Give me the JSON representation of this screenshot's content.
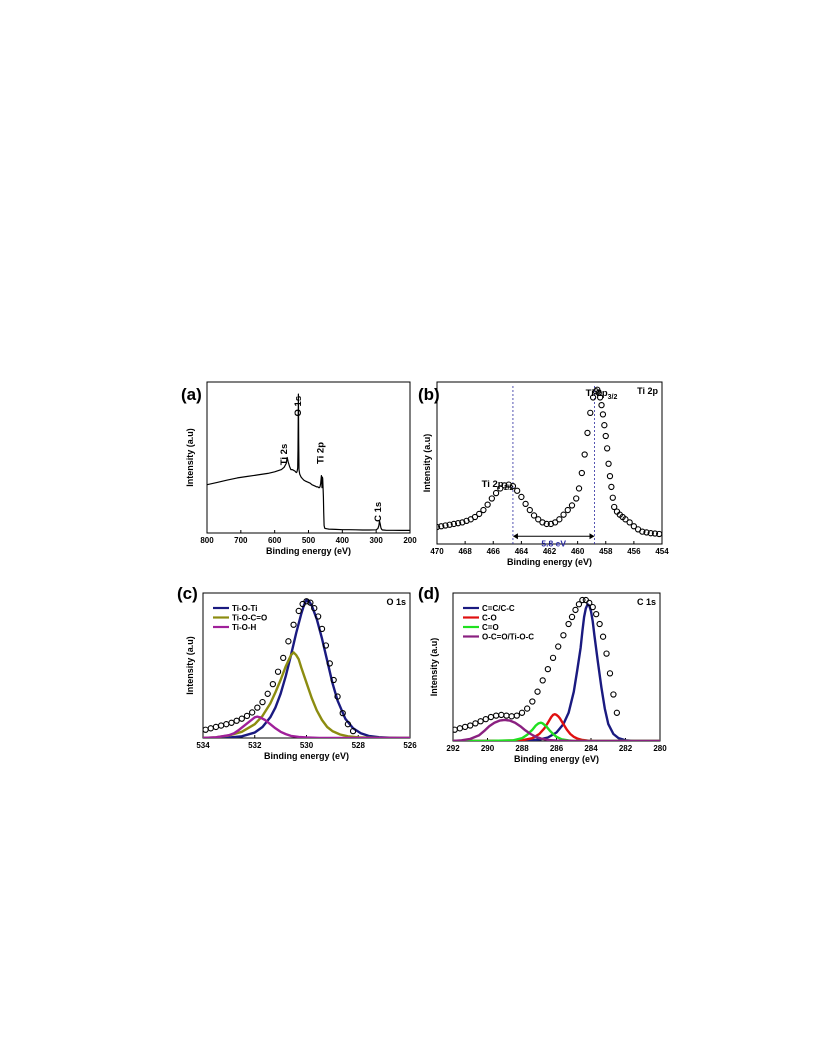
{
  "chart_data": [
    {
      "id": "a",
      "type": "line",
      "panel_label": "(a)",
      "corner_title": "",
      "xlabel": "Binding energy (eV)",
      "ylabel": "Intensity (a.u)",
      "xlim": [
        800,
        200
      ],
      "xticks": [
        800,
        700,
        600,
        500,
        400,
        300,
        200
      ],
      "ylim": [
        0,
        100
      ],
      "legend": [],
      "annotations": [
        {
          "text": "Ti 2s",
          "x": 563,
          "y": 52,
          "rotate": -90
        },
        {
          "text": "O 1s",
          "x": 522,
          "y": 84,
          "rotate": -90
        },
        {
          "text": "Ti 2p",
          "x": 455,
          "y": 53,
          "rotate": -90
        },
        {
          "text": "C 1s",
          "x": 285,
          "y": 14,
          "rotate": -90
        }
      ],
      "series": [
        {
          "color": "#000000",
          "style": "line",
          "width": 1.2,
          "x": [
            800,
            770,
            740,
            710,
            680,
            650,
            620,
            600,
            580,
            572,
            566,
            563,
            560,
            556,
            552,
            548,
            544,
            540,
            536,
            534,
            532,
            531,
            530,
            529,
            528,
            526,
            522,
            518,
            514,
            510,
            505,
            500,
            495,
            490,
            485,
            480,
            476,
            472,
            470,
            468,
            466,
            464,
            462,
            460,
            459,
            458,
            457,
            456,
            455,
            454,
            452,
            450,
            445,
            440,
            420,
            400,
            380,
            360,
            340,
            320,
            300,
            295,
            292,
            290,
            288,
            286,
            284,
            282,
            280,
            275,
            270,
            250,
            230,
            210,
            200
          ],
          "y": [
            32,
            33.5,
            35,
            36.5,
            37.5,
            38.5,
            39.5,
            40.5,
            42,
            43.5,
            46,
            50,
            47,
            44,
            42,
            42,
            41.5,
            41,
            40,
            40.5,
            43,
            55,
            92,
            60,
            42,
            39,
            37,
            36,
            35,
            34.5,
            34,
            33.5,
            33,
            32,
            31.5,
            31,
            30.5,
            30.5,
            30,
            30,
            30.5,
            33,
            38,
            30,
            37,
            36,
            31,
            24,
            14,
            5,
            3.2,
            3,
            2.8,
            2.6,
            2.4,
            2.2,
            2.2,
            2.1,
            2,
            2,
            2.1,
            3,
            5,
            8,
            6,
            3.5,
            2.5,
            2,
            2,
            1.9,
            1.8,
            1.8,
            1.7,
            1.7,
            1.7
          ]
        }
      ]
    },
    {
      "id": "b",
      "type": "scatter",
      "panel_label": "(b)",
      "corner_title": "Ti 2p",
      "xlabel": "Binding energy (eV)",
      "ylabel": "Intensity (a.u)",
      "xlim": [
        470,
        454
      ],
      "xticks": [
        470,
        468,
        466,
        464,
        462,
        460,
        458,
        456,
        454
      ],
      "ylim": [
        0,
        105
      ],
      "legend": [],
      "annotations": [
        {
          "text": "Ti 2p",
          "sub": "3/2",
          "x": 458.3,
          "y": 96,
          "rotate": 0
        },
        {
          "text": "Ti 2p",
          "sub": "1/2",
          "x": 465.7,
          "y": 37,
          "rotate": 0
        }
      ],
      "guide_lines": [
        464.6,
        458.8
      ],
      "span_arrow": {
        "x1": 464.6,
        "x2": 458.8,
        "y": 5,
        "text": "5.8 eV"
      },
      "series": [
        {
          "color": "#000000",
          "style": "markers",
          "marker": "open-circle",
          "x": [
            470,
            469.7,
            469.4,
            469.1,
            468.8,
            468.5,
            468.2,
            467.9,
            467.6,
            467.3,
            467,
            466.7,
            466.4,
            466.1,
            465.8,
            465.5,
            465.2,
            464.9,
            464.6,
            464.3,
            464,
            463.7,
            463.4,
            463.1,
            462.8,
            462.5,
            462.2,
            461.9,
            461.6,
            461.3,
            461,
            460.7,
            460.4,
            460.1,
            459.9,
            459.7,
            459.5,
            459.3,
            459.1,
            458.9,
            458.7,
            458.6,
            458.5,
            458.4,
            458.3,
            458.2,
            458.1,
            458,
            457.9,
            457.8,
            457.7,
            457.6,
            457.5,
            457.4,
            457.2,
            457,
            456.8,
            456.6,
            456.3,
            456,
            455.7,
            455.4,
            455.1,
            454.8,
            454.5,
            454.2
          ],
          "y": [
            11,
            11.5,
            12,
            12.5,
            13,
            13.5,
            14,
            15,
            16,
            17.5,
            19.5,
            22,
            25.5,
            29.5,
            33,
            36,
            38,
            38.5,
            37.5,
            34.5,
            30.5,
            26,
            22,
            18.5,
            16,
            14,
            13,
            13,
            14,
            16,
            19,
            22,
            25,
            29.5,
            36,
            46,
            58,
            72,
            85,
            95,
            99,
            100,
            98,
            95,
            90,
            84,
            77,
            70,
            62,
            52,
            44,
            37,
            30,
            24,
            21,
            19,
            17.5,
            16,
            14,
            11.5,
            9.5,
            8,
            7.5,
            7,
            6.8,
            6.5
          ]
        }
      ]
    },
    {
      "id": "c",
      "type": "line",
      "panel_label": "(c)",
      "corner_title": "O 1s",
      "xlabel": "Binding energy (eV)",
      "ylabel": "Intensity (a.u)",
      "xlim": [
        534,
        526
      ],
      "xticks": [
        534,
        532,
        530,
        528,
        526
      ],
      "ylim": [
        0,
        105
      ],
      "legend": [
        "Ti-O-Ti",
        "Ti-O-C=O",
        "Ti-O-H"
      ],
      "legend_colors": [
        "#1a1a80",
        "#8c8c10",
        "#a0209a"
      ],
      "legend_position": "top-left",
      "annotations": [],
      "series": [
        {
          "name": "Ti-O-Ti",
          "color": "#1a1a80",
          "style": "line",
          "width": 2.4,
          "x": [
            534,
            533.5,
            533,
            532.5,
            532,
            531.7,
            531.4,
            531.2,
            531,
            530.8,
            530.6,
            530.4,
            530.2,
            530.1,
            530,
            529.9,
            529.8,
            529.6,
            529.4,
            529.2,
            529,
            528.8,
            528.5,
            528.2,
            527.9,
            527.6,
            527.2,
            526.8,
            526.4,
            526
          ],
          "y": [
            0,
            0,
            0.3,
            1.2,
            4,
            8,
            15,
            22,
            32,
            45,
            60,
            76,
            90,
            96,
            100,
            99,
            96,
            86,
            72,
            56,
            40,
            27,
            14,
            7,
            3.5,
            1.5,
            0.6,
            0.2,
            0,
            0
          ]
        },
        {
          "name": "Ti-O-C=O",
          "color": "#8c8c10",
          "style": "line",
          "width": 2.4,
          "x": [
            534,
            533.5,
            533,
            532.5,
            532,
            531.7,
            531.4,
            531.2,
            531,
            530.8,
            530.6,
            530.5,
            530.4,
            530.3,
            530.2,
            530,
            529.8,
            529.6,
            529.4,
            529.2,
            529,
            528.7,
            528.4,
            528,
            527.5,
            527,
            526.5,
            526
          ],
          "y": [
            0,
            0.5,
            1.8,
            4.5,
            10,
            16,
            25,
            33,
            42,
            52,
            60,
            62,
            60,
            57,
            51,
            40,
            29,
            20,
            13,
            8,
            5,
            2.5,
            1.2,
            0.5,
            0.2,
            0,
            0,
            0
          ]
        },
        {
          "name": "Ti-O-H",
          "color": "#a0209a",
          "style": "line",
          "width": 2.4,
          "x": [
            534,
            533.5,
            533,
            532.8,
            532.6,
            532.4,
            532.2,
            532,
            531.9,
            531.8,
            531.6,
            531.4,
            531.2,
            531,
            530.8,
            530.6,
            530.3,
            530,
            529.5,
            529,
            528,
            527,
            526
          ],
          "y": [
            0,
            0.5,
            2,
            3.5,
            6,
            9,
            12,
            15,
            15.5,
            15,
            13,
            10,
            7,
            4.5,
            2.8,
            1.5,
            0.8,
            0.4,
            0.1,
            0,
            0,
            0,
            0
          ]
        },
        {
          "name": "",
          "color": "#000000",
          "style": "markers",
          "marker": "open-circle",
          "x": [
            533.9,
            533.7,
            533.5,
            533.3,
            533.1,
            532.9,
            532.7,
            532.5,
            532.3,
            532.1,
            531.9,
            531.7,
            531.5,
            531.3,
            531.1,
            530.9,
            530.7,
            530.5,
            530.3,
            530.15,
            530,
            529.85,
            529.7,
            529.55,
            529.4,
            529.25,
            529.1,
            528.95,
            528.8,
            528.6,
            528.4,
            528.2
          ],
          "y": [
            6,
            7,
            8,
            9,
            10,
            11,
            12.5,
            14,
            16,
            18.5,
            22,
            26,
            32,
            39,
            48,
            58,
            70,
            82,
            92,
            97,
            99,
            98,
            94,
            88,
            79,
            67,
            54,
            42,
            30,
            18,
            10,
            5
          ]
        }
      ]
    },
    {
      "id": "d",
      "type": "line",
      "panel_label": "(d)",
      "corner_title": "C 1s",
      "xlabel": "Binding energy (eV)",
      "ylabel": "Intensity (a.u)",
      "xlim": [
        292,
        280
      ],
      "xticks": [
        292,
        290,
        288,
        286,
        284,
        282,
        280
      ],
      "ylim": [
        0,
        105
      ],
      "legend": [
        "C=C/C-C",
        "C-O",
        "C=O",
        "O-C=O/Ti-O-C"
      ],
      "legend_colors": [
        "#1a1a80",
        "#e01010",
        "#20e020",
        "#8a2080"
      ],
      "legend_position": "top-left",
      "annotations": [],
      "series": [
        {
          "name": "C=C/C-C",
          "color": "#1a1a80",
          "style": "line",
          "width": 2.4,
          "x": [
            292,
            290,
            288,
            287,
            286.5,
            286,
            285.6,
            285.3,
            285,
            284.8,
            284.6,
            284.5,
            284.4,
            284.3,
            284.2,
            284.1,
            284,
            283.9,
            283.8,
            283.6,
            283.4,
            283.2,
            283,
            282.7,
            282.4,
            282,
            281.5,
            281,
            280
          ],
          "y": [
            0,
            0,
            0.2,
            1,
            2.5,
            6,
            12,
            20,
            35,
            50,
            66,
            78,
            88,
            94,
            97,
            96,
            92,
            85,
            75,
            56,
            38,
            23,
            12,
            5,
            2,
            0.5,
            0.1,
            0,
            0
          ]
        },
        {
          "name": "C-O",
          "color": "#e01010",
          "style": "line",
          "width": 2.4,
          "x": [
            292,
            290,
            288,
            287.4,
            287,
            286.7,
            286.5,
            286.3,
            286.2,
            286.1,
            286,
            285.9,
            285.8,
            285.6,
            285.4,
            285.2,
            285,
            284.8,
            284.5,
            284.2,
            283.8,
            283,
            282,
            280
          ],
          "y": [
            0,
            0,
            0.5,
            2,
            5,
            9,
            13,
            17,
            18.5,
            19,
            18.5,
            17.5,
            16,
            12,
            8,
            5,
            3,
            1.8,
            0.7,
            0.3,
            0.1,
            0,
            0,
            0
          ]
        },
        {
          "name": "C=O",
          "color": "#20e020",
          "style": "line",
          "width": 2.4,
          "x": [
            292,
            290,
            288.5,
            288,
            287.7,
            287.4,
            287.2,
            287.05,
            286.9,
            286.8,
            286.6,
            286.4,
            286.2,
            286,
            285.7,
            285.3,
            285,
            284,
            282,
            280
          ],
          "y": [
            0,
            0,
            0.5,
            2,
            4.5,
            8,
            11,
            12.5,
            13,
            12.5,
            10.5,
            7.5,
            5,
            3,
            1.2,
            0.4,
            0.1,
            0,
            0,
            0
          ]
        },
        {
          "name": "O-C=O/Ti-O-C",
          "color": "#8a2080",
          "style": "line",
          "width": 2.4,
          "x": [
            292,
            291.5,
            291,
            290.5,
            290.2,
            289.9,
            289.6,
            289.3,
            289,
            288.7,
            288.4,
            288.1,
            287.8,
            287.5,
            287.2,
            286.9,
            286.5,
            286,
            285,
            284,
            282,
            280
          ],
          "y": [
            0,
            0.5,
            1.5,
            4,
            7,
            10.5,
            13,
            14.5,
            15,
            14.5,
            13,
            10.5,
            7.5,
            5,
            3,
            1.8,
            0.8,
            0.3,
            0,
            0,
            0,
            0
          ]
        },
        {
          "name": "",
          "color": "#000000",
          "style": "markers",
          "marker": "open-circle",
          "x": [
            291.9,
            291.6,
            291.3,
            291,
            290.7,
            290.4,
            290.1,
            289.8,
            289.5,
            289.2,
            288.9,
            288.6,
            288.3,
            288,
            287.7,
            287.4,
            287.1,
            286.8,
            286.5,
            286.2,
            285.9,
            285.6,
            285.3,
            285.1,
            284.9,
            284.7,
            284.5,
            284.3,
            284.1,
            283.9,
            283.7,
            283.5,
            283.3,
            283.1,
            282.9,
            282.7,
            282.5
          ],
          "y": [
            8,
            9,
            10,
            11,
            12.5,
            14,
            15.5,
            17,
            18,
            18.5,
            18,
            17.5,
            18,
            20,
            23,
            28,
            35,
            43,
            51,
            59,
            67,
            75,
            83,
            88,
            93,
            97,
            100,
            100,
            98,
            95,
            90,
            83,
            74,
            62,
            48,
            33,
            20
          ]
        }
      ]
    }
  ]
}
